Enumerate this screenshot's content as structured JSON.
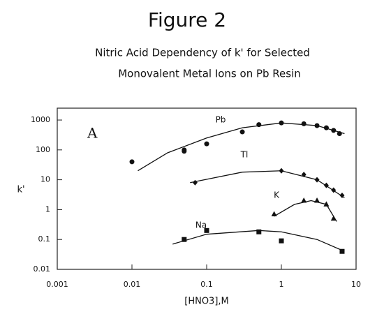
{
  "chart_data": {
    "type": "scatter",
    "title": "Figure 2",
    "subtitle": [
      "Nitric Acid Dependency of k' for Selected",
      "Monovalent Metal Ions on Pb Resin"
    ],
    "annotation": "A",
    "x_label": "[HNO3],M",
    "y_label": "k'",
    "log_x": true,
    "log_y": true,
    "xlim": [
      0.001,
      10
    ],
    "ylim": [
      0.01,
      2500
    ],
    "xticks": [
      0.001,
      0.01,
      0.1,
      1,
      10
    ],
    "yticks": [
      0.01,
      0.1,
      1,
      10,
      100,
      1000
    ],
    "series": [
      {
        "name": "Pb",
        "color": "#111111",
        "marker": "circle",
        "x": [
          0.01,
          0.05,
          0.05,
          0.1,
          0.3,
          0.5,
          1,
          2,
          3,
          4,
          5,
          6
        ],
        "values": [
          40,
          90,
          100,
          160,
          400,
          700,
          800,
          750,
          650,
          550,
          450,
          350
        ],
        "curve": {
          "x": [
            0.012,
            0.03,
            0.1,
            0.3,
            1,
            3,
            7
          ],
          "values": [
            20,
            80,
            250,
            550,
            800,
            650,
            350
          ]
        }
      },
      {
        "name": "Tl",
        "color": "#111111",
        "marker": "diamond",
        "x": [
          0.07,
          1,
          2,
          3,
          4,
          5,
          6.5
        ],
        "values": [
          8,
          20,
          15,
          10,
          6.5,
          4.5,
          3
        ],
        "curve": {
          "x": [
            0.06,
            0.3,
            1,
            3,
            7
          ],
          "values": [
            8,
            18,
            20,
            10,
            2.5
          ]
        }
      },
      {
        "name": "K",
        "color": "#111111",
        "marker": "triangle",
        "x": [
          0.8,
          2,
          3,
          4,
          5
        ],
        "values": [
          0.7,
          2,
          2,
          1.5,
          0.5
        ],
        "curve": {
          "x": [
            0.8,
            1.5,
            2.5,
            4,
            5.5
          ],
          "values": [
            0.6,
            1.5,
            2,
            1.5,
            0.4
          ]
        }
      },
      {
        "name": "Na",
        "color": "#111111",
        "marker": "square",
        "x": [
          0.05,
          0.1,
          0.5,
          1,
          6.5
        ],
        "values": [
          0.1,
          0.2,
          0.18,
          0.09,
          0.04
        ],
        "curve": {
          "x": [
            0.035,
            0.1,
            0.5,
            1,
            3,
            7
          ],
          "values": [
            0.07,
            0.15,
            0.2,
            0.18,
            0.1,
            0.04
          ]
        }
      }
    ]
  }
}
